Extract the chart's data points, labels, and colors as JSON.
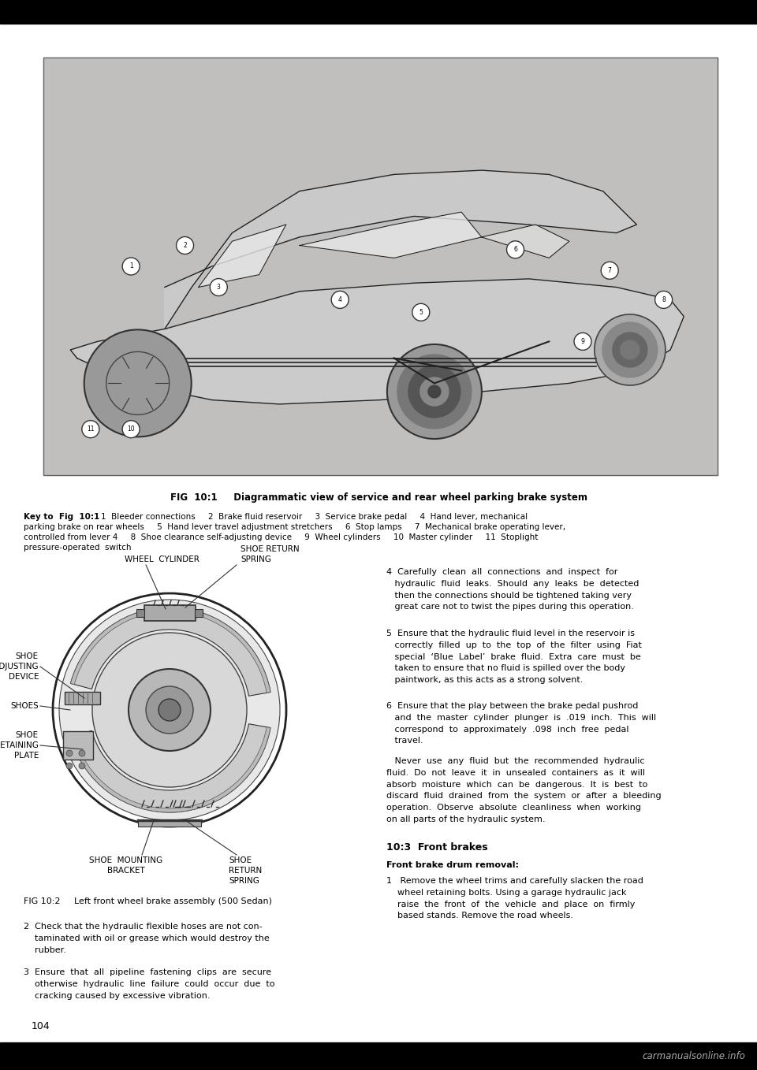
{
  "bg_color": "#ffffff",
  "top_bar_color": "#000000",
  "bottom_bar_color": "#000000",
  "watermark_text": "carmanualsonline.info",
  "watermark_color": "#aaaaaa",
  "fig_title": "FIG  10:1     Diagrammatic view of service and rear wheel parking brake system",
  "fig_title_fontsize": 8.5,
  "key_text_bold": "Key to  Fig  10:1",
  "key_text_rest": "    1  Bleeder connections     2  Brake fluid reservoir     3  Service brake pedal     4  Hand lever, mechanical\nparking brake on rear wheels     5  Hand lever travel adjustment stretchers     6  Stop lamps     7  Mechanical brake operating lever,\ncontrolled from lever 4     8  Shoe clearance self-adjusting device     9  Wheel cylinders     10  Master cylinder     11  Stoplight\npressure-operated  switch",
  "key_fontsize": 7.5,
  "fig2_caption": "FIG 10:2     Left front wheel brake assembly (500 Sedan)",
  "fig2_fontsize": 8,
  "right_text_4": "4  Carefully  clean  all  connections  and  inspect  for\n   hydraulic  fluid  leaks.  Should  any  leaks  be  detected\n   then the connections should be tightened taking very\n   great care not to twist the pipes during this operation.",
  "right_text_5": "5  Ensure that the hydraulic fluid level in the reservoir is\n   correctly  filled  up  to  the  top  of  the  filter  using  Fiat\n   special  ‘Blue  Label’  brake  fluid.  Extra  care  must  be\n   taken to ensure that no fluid is spilled over the body\n   paintwork, as this acts as a strong solvent.",
  "right_text_6a": "6  Ensure that the play between the brake pedal pushrod\n   and  the  master  cylinder  plunger  is  .019  inch.  This  will\n   correspond  to  approximately  .098  inch  free  pedal\n   travel.",
  "right_text_6b": "   Never  use  any  fluid  but  the  recommended  hydraulic\nfluid.  Do  not  leave  it  in  unsealed  containers  as  it  will\nabsorb  moisture  which  can  be  dangerous.  It  is  best  to\ndiscard  fluid  drained  from  the  system  or  after  a  bleeding\noperation.  Observe  absolute  cleanliness  when  working\non all parts of the hydraulic system.",
  "section_header": "10:3  Front brakes",
  "section_subheader": "Front brake drum removal:",
  "section_text_1": "1   Remove the wheel trims and carefully slacken the road\n    wheel retaining bolts. Using a garage hydraulic jack\n    raise  the  front  of  the  vehicle  and  place  on  firmly\n    based stands. Remove the road wheels.",
  "left_bottom_text_1": "2  Check that the hydraulic flexible hoses are not con-\n    taminated with oil or grease which would destroy the\n    rubber.",
  "left_bottom_text_2": "3  Ensure  that  all  pipeline  fastening  clips  are  secure\n    otherwise  hydraulic  line  failure  could  occur  due  to\n    cracking caused by excessive vibration.",
  "page_number": "104",
  "font_size_body": 8,
  "car_image_bg": "#c0bfbe",
  "car_image_border": "#888888",
  "car_body_color": "#d4d4d4",
  "car_line_color": "#222222"
}
